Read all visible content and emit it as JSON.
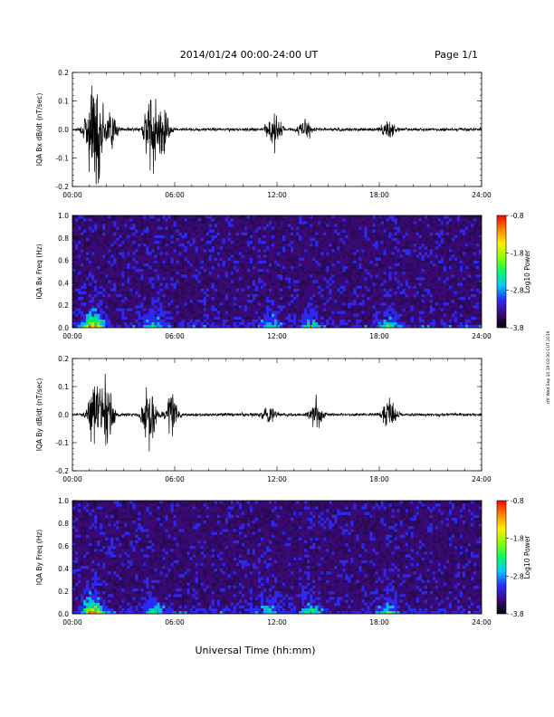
{
  "header": {
    "date_range": "2014/01/24  00:00-24:00 UT",
    "page": "Page 1/1"
  },
  "side_stamp": "rtfr Wed Sep 10 19:03:30 CUT 2019",
  "colors": {
    "trace": "#000000",
    "spectrogram_background": "#2a0a55",
    "colorbar": [
      "#000000",
      "#3b0a78",
      "#2c2cff",
      "#00c8ff",
      "#00ff66",
      "#8cff00",
      "#ffee00",
      "#ff8800",
      "#ff0000"
    ]
  },
  "chart_data": [
    {
      "type": "line",
      "ylabel": "IQA Bx dB/dt (nT/sec)",
      "xlim": [
        "00:00",
        "24:00"
      ],
      "ylim": [
        -0.2,
        0.2
      ],
      "x_ticks": [
        "00:00",
        "06:00",
        "12:00",
        "18:00",
        "24:00"
      ],
      "y_ticks": [
        "-0.2",
        "-0.1",
        "0.0",
        "0.1",
        "0.2"
      ],
      "bursts": [
        {
          "hour": 1.1,
          "amplitude": 0.2
        },
        {
          "hour": 1.5,
          "amplitude": 0.2
        },
        {
          "hour": 2.3,
          "amplitude": 0.08
        },
        {
          "hour": 4.6,
          "amplitude": 0.2
        },
        {
          "hour": 5.3,
          "amplitude": 0.12
        },
        {
          "hour": 11.8,
          "amplitude": 0.11
        },
        {
          "hour": 13.6,
          "amplitude": 0.06
        },
        {
          "hour": 18.5,
          "amplitude": 0.05
        }
      ]
    },
    {
      "type": "heatmap",
      "ylabel": "IQA Bx Freq (Hz)",
      "xlim": [
        "00:00",
        "24:00"
      ],
      "ylim": [
        0.0,
        1.0
      ],
      "x_ticks": [
        "00:00",
        "06:00",
        "12:00",
        "18:00",
        "24:00"
      ],
      "y_ticks": [
        "0.0",
        "0.2",
        "0.4",
        "0.6",
        "0.8",
        "1.0"
      ],
      "colorbar": {
        "label": "Log10 Power",
        "range": [
          -3.8,
          -0.8
        ],
        "ticks": [
          "-0.8",
          "-1.8",
          "-2.8",
          "-3.8"
        ]
      }
    },
    {
      "type": "line",
      "ylabel": "IQA By dB/dt (nT/sec)",
      "xlim": [
        "00:00",
        "24:00"
      ],
      "ylim": [
        -0.2,
        0.2
      ],
      "x_ticks": [
        "00:00",
        "06:00",
        "12:00",
        "18:00",
        "24:00"
      ],
      "y_ticks": [
        "-0.2",
        "-0.1",
        "0.0",
        "0.1",
        "0.2"
      ],
      "bursts": [
        {
          "hour": 1.3,
          "amplitude": 0.2
        },
        {
          "hour": 2.0,
          "amplitude": 0.2
        },
        {
          "hour": 4.5,
          "amplitude": 0.2
        },
        {
          "hour": 5.8,
          "amplitude": 0.1
        },
        {
          "hour": 11.5,
          "amplitude": 0.05
        },
        {
          "hour": 14.3,
          "amplitude": 0.07
        },
        {
          "hour": 18.6,
          "amplitude": 0.09
        }
      ]
    },
    {
      "type": "heatmap",
      "ylabel": "IQA By Freq (Hz)",
      "xlim": [
        "00:00",
        "24:00"
      ],
      "ylim": [
        0.0,
        1.0
      ],
      "x_ticks": [
        "00:00",
        "06:00",
        "12:00",
        "18:00",
        "24:00"
      ],
      "y_ticks": [
        "0.0",
        "0.2",
        "0.4",
        "0.6",
        "0.8",
        "1.0"
      ],
      "colorbar": {
        "label": "Log10 Power",
        "range": [
          -3.8,
          -0.8
        ],
        "ticks": [
          "-0.8",
          "-1.8",
          "-2.8",
          "-3.8"
        ]
      }
    }
  ],
  "xlabel": "Universal Time (hh:mm)"
}
